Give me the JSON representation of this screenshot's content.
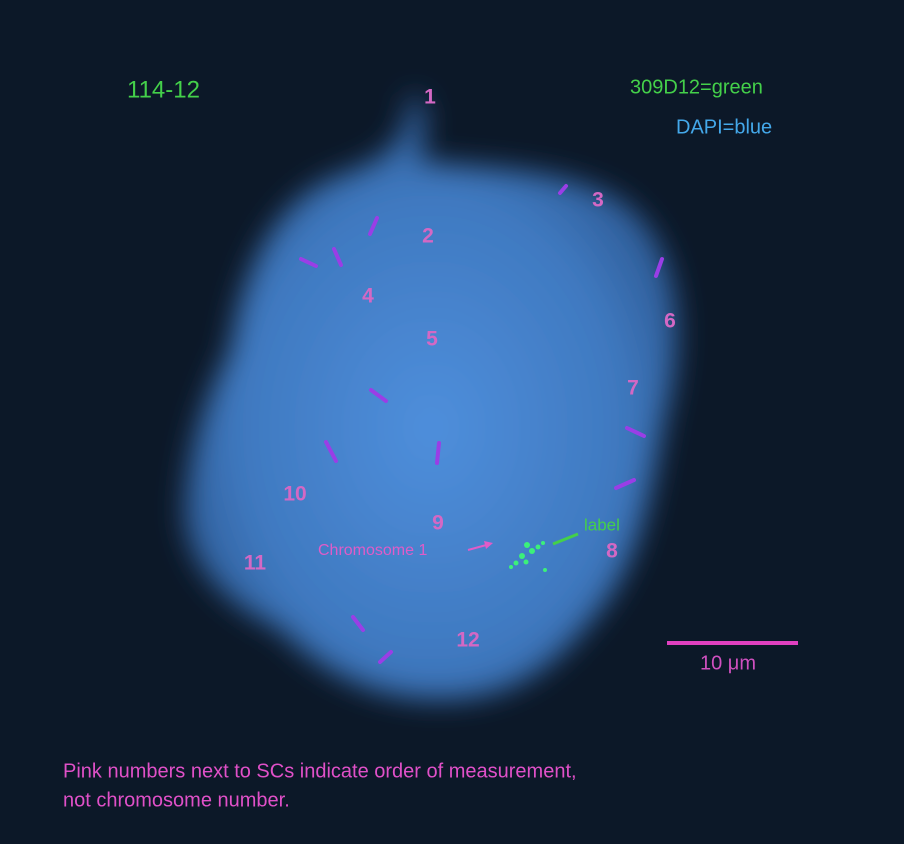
{
  "sample_id": "114-12",
  "probe_legend": [
    "309D12=green",
    "DAPI=blue"
  ],
  "order_labels": [
    "1",
    "2",
    "3",
    "4",
    "5",
    "6",
    "7",
    "8",
    "9",
    "10",
    "11",
    "12"
  ],
  "annotations": {
    "chromosome": "Chromosome 1",
    "label": "label"
  },
  "scale_bar": "10 μm",
  "caption": [
    "Pink numbers next to SCs indicate order of measurement,",
    "not chromosome number."
  ]
}
